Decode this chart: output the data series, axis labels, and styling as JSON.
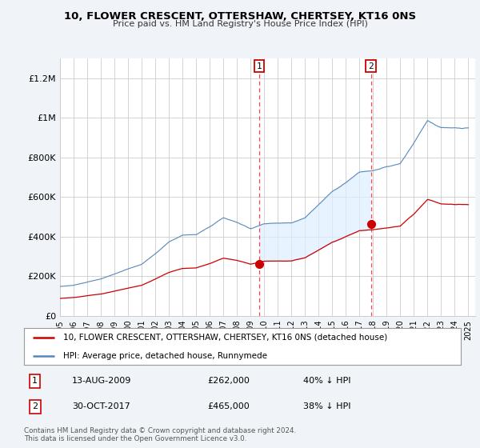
{
  "title": "10, FLOWER CRESCENT, OTTERSHAW, CHERTSEY, KT16 0NS",
  "subtitle": "Price paid vs. HM Land Registry's House Price Index (HPI)",
  "legend_line1": "10, FLOWER CRESCENT, OTTERSHAW, CHERTSEY, KT16 0NS (detached house)",
  "legend_line2": "HPI: Average price, detached house, Runnymede",
  "annotation1_label": "1",
  "annotation1_date": "13-AUG-2009",
  "annotation1_price": "£262,000",
  "annotation1_hpi": "40% ↓ HPI",
  "annotation2_label": "2",
  "annotation2_date": "30-OCT-2017",
  "annotation2_price": "£465,000",
  "annotation2_hpi": "38% ↓ HPI",
  "footnote": "Contains HM Land Registry data © Crown copyright and database right 2024.\nThis data is licensed under the Open Government Licence v3.0.",
  "line_color_red": "#cc0000",
  "line_color_blue": "#5588bb",
  "fill_color_blue": "#ddeeff",
  "background_color": "#f0f4f8",
  "plot_bg_color": "#ffffff",
  "vline_color": "#ff4444",
  "annotation_box_color": "#cc0000",
  "ylim": [
    0,
    1300000
  ],
  "yticks": [
    0,
    200000,
    400000,
    600000,
    800000,
    1000000,
    1200000
  ],
  "ytick_labels": [
    "£0",
    "£200K",
    "£400K",
    "£600K",
    "£800K",
    "£1M",
    "£1.2M"
  ],
  "vline1_x": 2009.617,
  "vline2_x": 2017.831,
  "sale1_x": 2009.617,
  "sale1_y": 262000,
  "sale2_x": 2017.831,
  "sale2_y": 465000,
  "xlim": [
    1995.0,
    2025.5
  ]
}
